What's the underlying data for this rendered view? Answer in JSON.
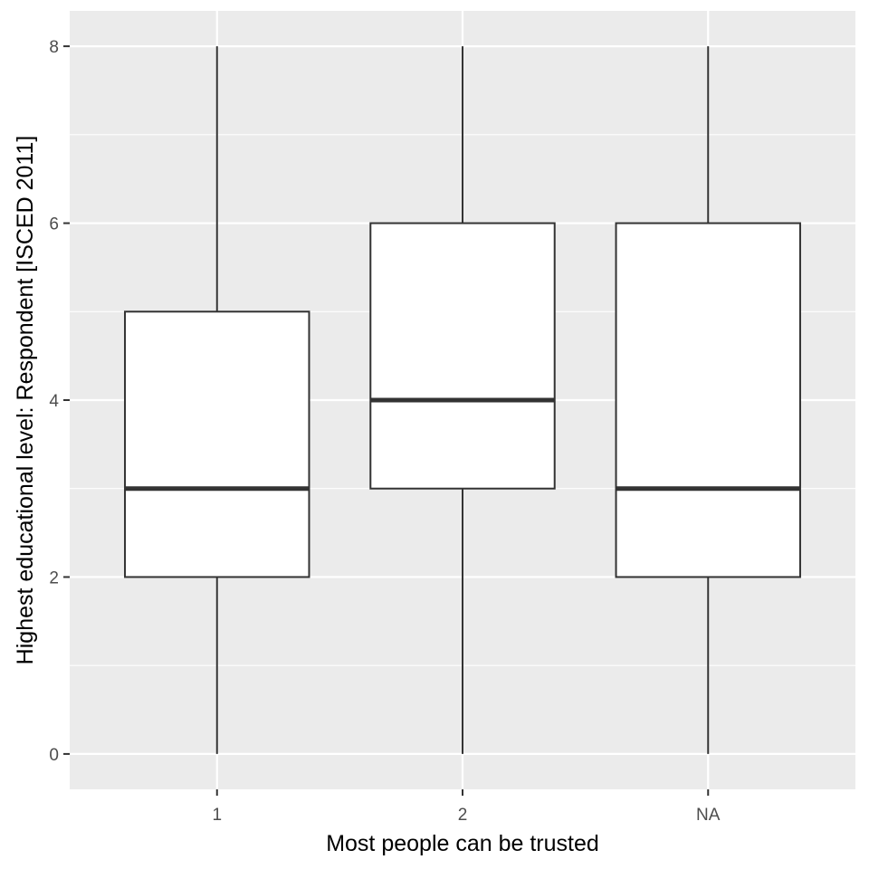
{
  "chart_data": {
    "type": "boxplot",
    "xlabel": "Most people can be trusted",
    "ylabel": "Highest educational level: Respondent [ISCED 2011]",
    "categories": [
      "1",
      "2",
      "NA"
    ],
    "boxes": [
      {
        "category": "1",
        "whisker_low": 0,
        "q1": 2,
        "median": 3,
        "q3": 5,
        "whisker_high": 8
      },
      {
        "category": "2",
        "whisker_low": 0,
        "q1": 3,
        "median": 4,
        "q3": 6,
        "whisker_high": 8
      },
      {
        "category": "NA",
        "whisker_low": 0,
        "q1": 2,
        "median": 3,
        "q3": 6,
        "whisker_high": 8
      }
    ],
    "y_ticks": [
      "0",
      "2",
      "4",
      "6",
      "8"
    ],
    "ylim": [
      -0.4,
      8.4
    ],
    "grid": true,
    "colors": {
      "panel": "#ebebeb",
      "grid": "#ffffff",
      "box_fill": "#ffffff",
      "box_line": "#333333",
      "tick": "#333333"
    }
  }
}
